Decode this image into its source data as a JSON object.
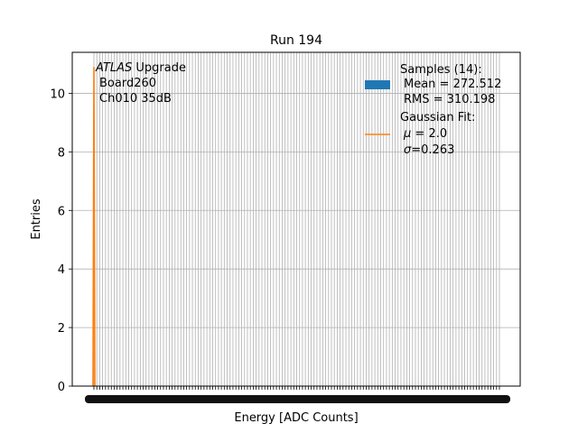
{
  "chart_data": {
    "type": "bar",
    "title": "Run 194",
    "xlabel": "Energy [ADC Counts]",
    "ylabel": "Entries",
    "ylim": [
      0,
      11.4
    ],
    "yticks": [
      0,
      2,
      4,
      6,
      8,
      10
    ],
    "grid": true,
    "x_tick_count": 141,
    "x_tick_labels_note": "dense overlapping tick labels, unreadable",
    "series": [
      {
        "name": "Samples (14):",
        "kind": "histogram",
        "color": "#1f77b4",
        "values_visible": "no filled bars visible"
      },
      {
        "name": "Gaussian Fit:",
        "kind": "line",
        "color": "#ff7f0e",
        "mu": 2.0,
        "sigma": 0.263,
        "peak_value": 10.9
      }
    ],
    "annotation": {
      "line1_italic": "ATLAS",
      "line1_rest": " Upgrade",
      "line2": "Board260",
      "line3": "Ch010 35dB"
    },
    "legend": {
      "placement": "top-right",
      "samples_title": "Samples (14):",
      "samples_mean": "Mean = 272.512",
      "samples_rms": "RMS = 310.198",
      "fit_title": "Gaussian Fit:",
      "fit_mu_symbol": "μ",
      "fit_mu_value": " = 2.0",
      "fit_sigma_symbol": "σ",
      "fit_sigma_value": "=0.263"
    }
  }
}
